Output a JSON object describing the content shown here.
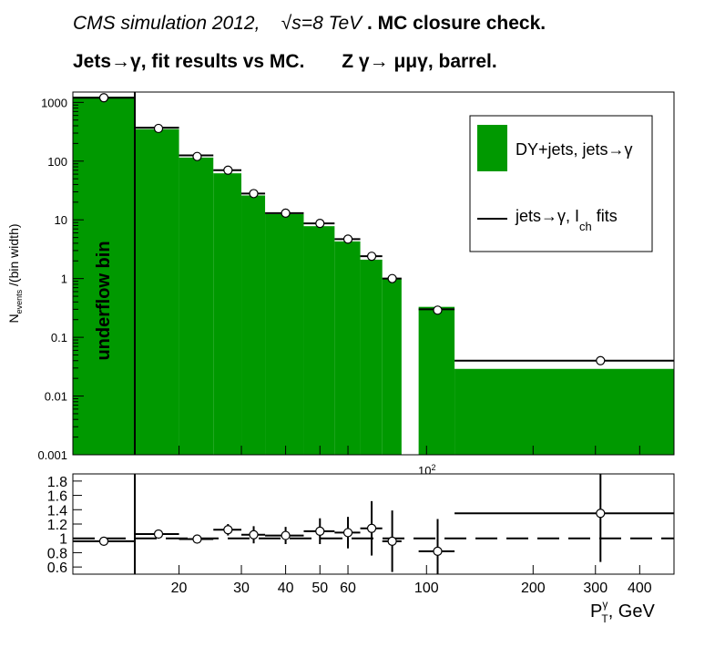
{
  "header": {
    "title_part1": "CMS simulation 2012,",
    "title_sqrt_s": "√s=8 TeV",
    "title_part2": ". MC closure check.",
    "title_line2": "Jets→γ, fit results vs MC.",
    "title_line2b": "Z  γ→  μμγ, barrel."
  },
  "chart_data": [
    {
      "type": "bar",
      "panel": "main",
      "ylabel": "N_events /(bin width)",
      "yscale": "log",
      "ylim": [
        0.001,
        1500
      ],
      "xscale": "log",
      "xlim": [
        10,
        500
      ],
      "y_ticks": [
        "0.001",
        "0.01",
        "0.1",
        "1",
        "10",
        "100",
        "1000"
      ],
      "x_ticks_main": [
        "10^2"
      ],
      "annotation": "underflow bin",
      "legend_position": "top-right",
      "series": [
        {
          "name": "DY+jets, jets→γ",
          "style": "filled-histogram",
          "color": "#009900",
          "bins": [
            {
              "x_low": 10,
              "x_high": 15,
              "value": 1250
            },
            {
              "x_low": 15,
              "x_high": 20,
              "value": 350
            },
            {
              "x_low": 20,
              "x_high": 25,
              "value": 115
            },
            {
              "x_low": 25,
              "x_high": 30,
              "value": 62
            },
            {
              "x_low": 30,
              "x_high": 35,
              "value": 26
            },
            {
              "x_low": 35,
              "x_high": 45,
              "value": 12.5
            },
            {
              "x_low": 45,
              "x_high": 55,
              "value": 7.8
            },
            {
              "x_low": 55,
              "x_high": 65,
              "value": 4.3
            },
            {
              "x_low": 65,
              "x_high": 75,
              "value": 2.1
            },
            {
              "x_low": 75,
              "x_high": 85,
              "value": 1.0
            },
            {
              "x_low": 95,
              "x_high": 120,
              "value": 0.33
            },
            {
              "x_low": 120,
              "x_high": 500,
              "value": 0.029
            }
          ]
        },
        {
          "name": "jets→γ, I_ch fits",
          "legend_label_main": "jets→γ, I",
          "legend_label_sub": "ch",
          "legend_label_end": " fits",
          "style": "line-histogram",
          "color": "#000000",
          "bins": [
            {
              "x_low": 10,
              "x_high": 15,
              "value": 1200
            },
            {
              "x_low": 15,
              "x_high": 20,
              "value": 370
            },
            {
              "x_low": 20,
              "x_high": 25,
              "value": 125
            },
            {
              "x_low": 25,
              "x_high": 30,
              "value": 70
            },
            {
              "x_low": 30,
              "x_high": 35,
              "value": 28
            },
            {
              "x_low": 35,
              "x_high": 45,
              "value": 13
            },
            {
              "x_low": 45,
              "x_high": 55,
              "value": 8.7
            },
            {
              "x_low": 55,
              "x_high": 65,
              "value": 4.7
            },
            {
              "x_low": 65,
              "x_high": 75,
              "value": 2.4
            },
            {
              "x_low": 75,
              "x_high": 85,
              "value": 1.0
            },
            {
              "x_low": 95,
              "x_high": 120,
              "value": 0.3
            },
            {
              "x_low": 120,
              "x_high": 500,
              "value": 0.04
            }
          ],
          "markers": [
            {
              "x": 12.5,
              "y": 1200
            },
            {
              "x": 17.5,
              "y": 360
            },
            {
              "x": 22.5,
              "y": 120
            },
            {
              "x": 27.5,
              "y": 70
            },
            {
              "x": 32.5,
              "y": 28
            },
            {
              "x": 40,
              "y": 13
            },
            {
              "x": 50,
              "y": 8.7
            },
            {
              "x": 60,
              "y": 4.7
            },
            {
              "x": 70,
              "y": 2.4
            },
            {
              "x": 80,
              "y": 1.0
            },
            {
              "x": 107.5,
              "y": 0.29
            },
            {
              "x": 310,
              "y": 0.04
            }
          ]
        }
      ]
    },
    {
      "type": "scatter",
      "panel": "ratio",
      "xlabel": "P_T^γ, GeV",
      "xscale": "log",
      "xlim": [
        10,
        500
      ],
      "ylim": [
        0.5,
        1.9
      ],
      "y_ticks": [
        "0.6",
        "0.8",
        "1",
        "1.2",
        "1.4",
        "1.6",
        "1.8"
      ],
      "x_ticks": [
        "20",
        "30",
        "40",
        "50",
        "60",
        "100",
        "200",
        "300",
        "400"
      ],
      "reference_line": 1.0,
      "points": [
        {
          "x": 12.5,
          "y": 0.96,
          "x_low": 10,
          "x_high": 15,
          "err": 0.02
        },
        {
          "x": 17.5,
          "y": 1.06,
          "x_low": 15,
          "x_high": 20,
          "err": 0.02
        },
        {
          "x": 22.5,
          "y": 0.99,
          "x_low": 20,
          "x_high": 25,
          "err": 0.03
        },
        {
          "x": 27.5,
          "y": 1.12,
          "x_low": 25,
          "x_high": 30,
          "err": 0.08
        },
        {
          "x": 32.5,
          "y": 1.05,
          "x_low": 30,
          "x_high": 35,
          "err": 0.12
        },
        {
          "x": 40,
          "y": 1.04,
          "x_low": 35,
          "x_high": 45,
          "err": 0.12
        },
        {
          "x": 50,
          "y": 1.1,
          "x_low": 45,
          "x_high": 55,
          "err": 0.18
        },
        {
          "x": 60,
          "y": 1.08,
          "x_low": 55,
          "x_high": 65,
          "err": 0.22
        },
        {
          "x": 70,
          "y": 1.14,
          "x_low": 65,
          "x_high": 75,
          "err": 0.38
        },
        {
          "x": 80,
          "y": 0.96,
          "x_low": 75,
          "x_high": 85,
          "err": 0.43
        },
        {
          "x": 107.5,
          "y": 0.82,
          "x_low": 95,
          "x_high": 120,
          "err": 0.45
        },
        {
          "x": 310,
          "y": 1.35,
          "x_low": 120,
          "x_high": 500,
          "err": 0.68
        }
      ]
    }
  ]
}
